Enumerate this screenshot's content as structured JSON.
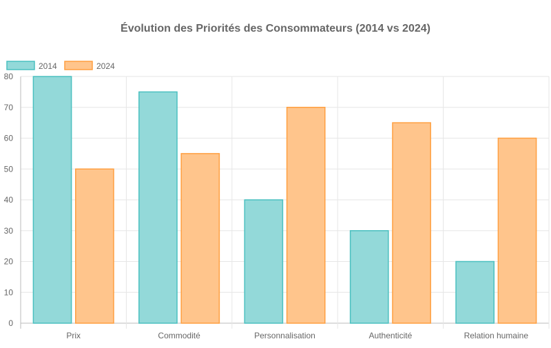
{
  "chart_data": {
    "type": "bar",
    "title": "Évolution des Priorités des Consommateurs (2014 vs 2024)",
    "categories": [
      "Prix",
      "Commodité",
      "Personnalisation",
      "Authenticité",
      "Relation humaine"
    ],
    "series": [
      {
        "name": "2014",
        "values": [
          80,
          75,
          40,
          30,
          20
        ],
        "fill": "#93d9d9",
        "border": "#4bc0c0"
      },
      {
        "name": "2024",
        "values": [
          50,
          55,
          70,
          65,
          60
        ],
        "fill": "#ffc58c",
        "border": "#ff9f40"
      }
    ],
    "xlabel": "",
    "ylabel": "",
    "ylim": [
      0,
      80
    ],
    "yticks": [
      0,
      10,
      20,
      30,
      40,
      50,
      60,
      70,
      80
    ],
    "grid": true,
    "legend": "top-left"
  }
}
